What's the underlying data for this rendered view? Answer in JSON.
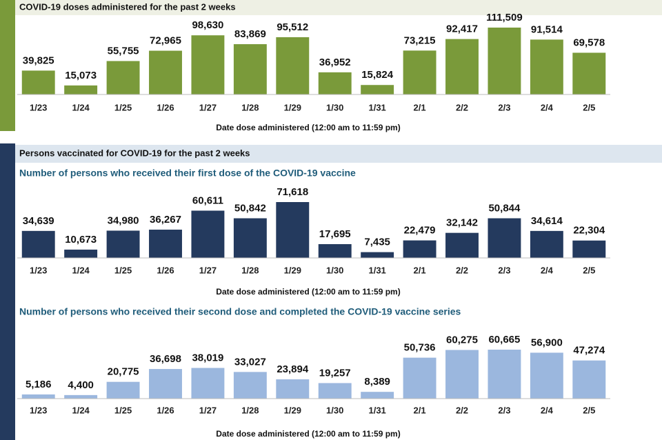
{
  "section_title": "Persons vaccinated for COVID-19 for the past 2 weeks",
  "chart_data": [
    {
      "type": "bar",
      "title": "COVID-19 doses administered for the past 2 weeks",
      "categories": [
        "1/23",
        "1/24",
        "1/25",
        "1/26",
        "1/27",
        "1/28",
        "1/29",
        "1/30",
        "1/31",
        "2/1",
        "2/2",
        "2/3",
        "2/4",
        "2/5"
      ],
      "values": [
        39825,
        15073,
        55755,
        72965,
        98630,
        83869,
        95512,
        36952,
        15824,
        73215,
        92417,
        111509,
        91514,
        69578
      ],
      "value_labels": [
        "39,825",
        "15,073",
        "55,755",
        "72,965",
        "98,630",
        "83,869",
        "95,512",
        "36,952",
        "15,824",
        "73,215",
        "92,417",
        "111,509",
        "91,514",
        "69,578"
      ],
      "color": "#7a9a3a",
      "xlabel": "Date dose administered (12:00 am to 11:59 pm)"
    },
    {
      "type": "bar",
      "title": "Number of persons who received their first dose of the COVID-19 vaccine",
      "categories": [
        "1/23",
        "1/24",
        "1/25",
        "1/26",
        "1/27",
        "1/28",
        "1/29",
        "1/30",
        "1/31",
        "2/1",
        "2/2",
        "2/3",
        "2/4",
        "2/5"
      ],
      "values": [
        34639,
        10673,
        34980,
        36267,
        60611,
        50842,
        71618,
        17695,
        7435,
        22479,
        32142,
        50844,
        34614,
        22304
      ],
      "value_labels": [
        "34,639",
        "10,673",
        "34,980",
        "36,267",
        "60,611",
        "50,842",
        "71,618",
        "17,695",
        "7,435",
        "22,479",
        "32,142",
        "50,844",
        "34,614",
        "22,304"
      ],
      "color": "#243a5e",
      "xlabel": "Date dose administered (12:00 am to 11:59 pm)"
    },
    {
      "type": "bar",
      "title": "Number of persons who received their second dose and completed the COVID-19 vaccine series",
      "categories": [
        "1/23",
        "1/24",
        "1/25",
        "1/26",
        "1/27",
        "1/28",
        "1/29",
        "1/30",
        "1/31",
        "2/1",
        "2/2",
        "2/3",
        "2/4",
        "2/5"
      ],
      "values": [
        5186,
        4400,
        20775,
        36698,
        38019,
        33027,
        23894,
        19257,
        8389,
        50736,
        60275,
        60665,
        56900,
        47274
      ],
      "value_labels": [
        "5,186",
        "4,400",
        "20,775",
        "36,698",
        "38,019",
        "33,027",
        "23,894",
        "19,257",
        "8,389",
        "50,736",
        "60,275",
        "60,665",
        "56,900",
        "47,274"
      ],
      "color": "#9bb7de",
      "xlabel": "Date dose administered (12:00 am to 11:59 pm)"
    }
  ]
}
